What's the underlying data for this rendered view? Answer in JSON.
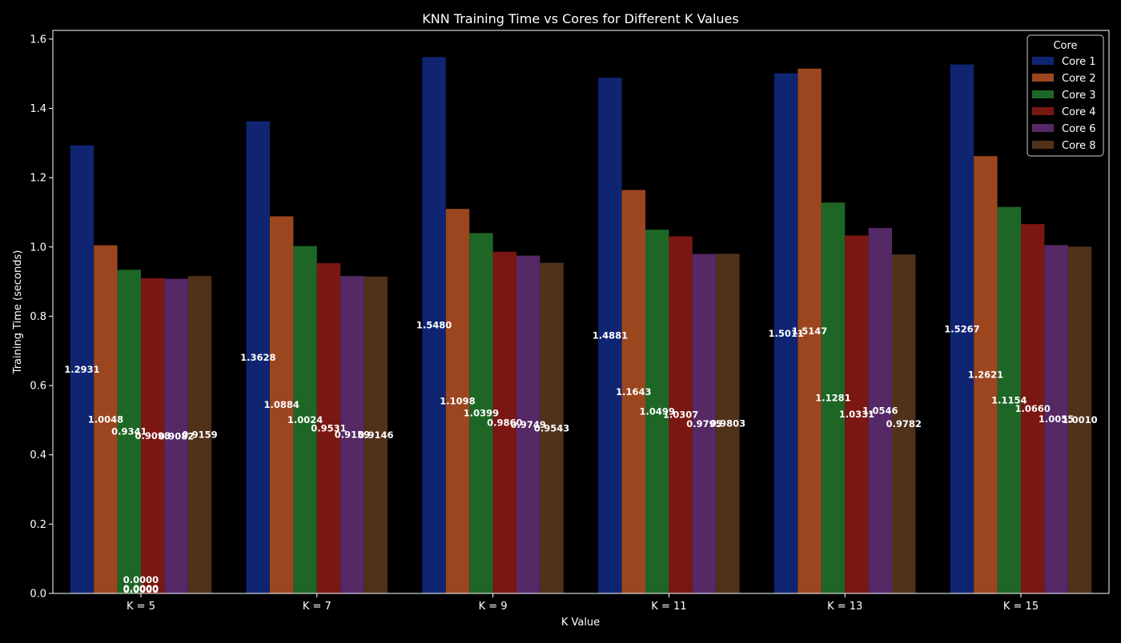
{
  "chart_data": {
    "type": "bar",
    "title": "KNN Training Time vs Cores for Different K Values",
    "xlabel": "K Value",
    "ylabel": "Training Time (seconds)",
    "ylim": [
      0,
      1.625
    ],
    "yticks": [
      "0.0",
      "0.2",
      "0.4",
      "0.6",
      "0.8",
      "1.0",
      "1.2",
      "1.4",
      "1.6"
    ],
    "grid": false,
    "legend": {
      "title": "Core",
      "placement": "top-right"
    },
    "categories": [
      "K = 5",
      "K = 7",
      "K = 9",
      "K = 11",
      "K = 13",
      "K = 15"
    ],
    "series": [
      {
        "name": "Core 1",
        "color": "#0f2572",
        "values": [
          1.2931,
          1.3628,
          1.548,
          1.4881,
          1.5011,
          1.5267
        ],
        "labels": [
          "1.2931",
          "1.3628",
          "1.5480",
          "1.4881",
          "1.5011",
          "1.5267"
        ]
      },
      {
        "name": "Core 2",
        "color": "#9c4620",
        "values": [
          1.0048,
          1.0884,
          1.1098,
          1.1643,
          1.5147,
          1.2621
        ],
        "labels": [
          "1.0048",
          "1.0884",
          "1.1098",
          "1.1643",
          "1.5147",
          "1.2621"
        ]
      },
      {
        "name": "Core 3",
        "color": "#1e6626",
        "values": [
          0.9341,
          1.0024,
          1.0399,
          1.0499,
          1.1281,
          1.1154
        ],
        "labels": [
          "0.9341",
          "1.0024",
          "1.0399",
          "1.0499",
          "1.1281",
          "1.1154"
        ]
      },
      {
        "name": "Core 4",
        "color": "#7a1712",
        "values": [
          0.9098,
          0.9531,
          0.986,
          1.0307,
          1.0331,
          1.066
        ],
        "labels": [
          "0.9098",
          "0.9531",
          "0.9860",
          "1.0307",
          "1.0331",
          "1.0660"
        ]
      },
      {
        "name": "Core 6",
        "color": "#552866",
        "values": [
          0.9082,
          0.9159,
          0.9749,
          0.9795,
          1.0546,
          1.0055
        ],
        "labels": [
          "0.9082",
          "0.9159",
          "0.9749",
          "0.9795",
          "1.0546",
          "1.0055"
        ]
      },
      {
        "name": "Core 8",
        "color": "#50311a",
        "values": [
          0.9159,
          0.9146,
          0.9543,
          0.9803,
          0.9782,
          1.001
        ],
        "labels": [
          "0.9159",
          "0.9146",
          "0.9543",
          "0.9803",
          "0.9782",
          "1.0010"
        ]
      }
    ],
    "zero_annotations": [
      "0.0000",
      "0.0000",
      "0.0000",
      "0.0000"
    ]
  }
}
